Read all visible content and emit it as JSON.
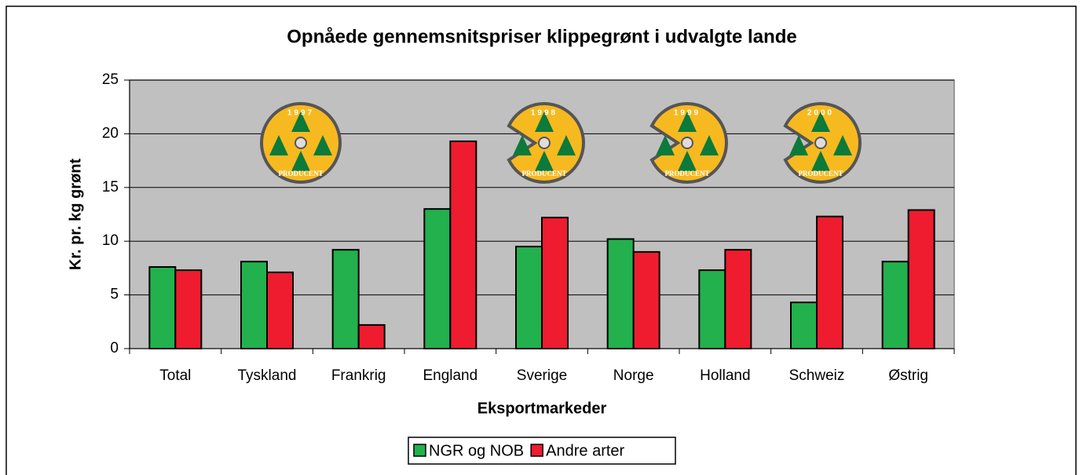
{
  "chart_data": {
    "type": "bar",
    "title": "Opnåede gennemsnitspriser klippegrønt i udvalgte lande",
    "x_label": "Eksportmarkeder",
    "y_label": "Kr. pr. kg grønt",
    "categories": [
      "Total",
      "Tyskland",
      "Frankrig",
      "England",
      "Sverige",
      "Norge",
      "Holland",
      "Schweiz",
      "Østrig"
    ],
    "series": [
      {
        "name": "NGR og NOB",
        "color": "#22b14c",
        "values": [
          7.6,
          8.1,
          9.2,
          13.0,
          9.5,
          10.2,
          7.3,
          4.3,
          8.1
        ]
      },
      {
        "name": "Andre arter",
        "color": "#ee1c2e",
        "values": [
          7.3,
          7.1,
          2.2,
          19.3,
          12.2,
          9.0,
          9.2,
          12.3,
          12.9
        ]
      }
    ],
    "ylim": [
      0,
      25
    ],
    "yticks": [
      0,
      5,
      10,
      15,
      20,
      25
    ],
    "grid": true,
    "legend": "bottom",
    "badges": {
      "years": [
        "1997",
        "1998",
        "1999",
        "2000"
      ],
      "label": "PRODUCENT"
    }
  }
}
